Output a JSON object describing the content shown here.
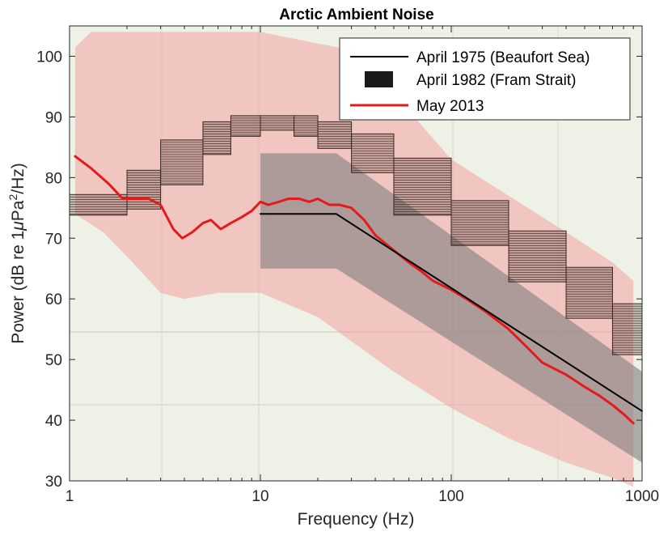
{
  "chart_data": {
    "type": "line",
    "title": "Arctic Ambient Noise",
    "xlabel": "Frequency (Hz)",
    "ylabel_parts": {
      "pre": "Power (dB re 1",
      "mu": "μ",
      "mid": "Pa",
      "sup": "2",
      "post": "/Hz)"
    },
    "xscale": "log",
    "xlim": [
      1,
      1000
    ],
    "ylim": [
      30,
      105
    ],
    "xticks": [
      1,
      10,
      100,
      1000
    ],
    "xtick_labels": [
      "1",
      "10",
      "100",
      "1000"
    ],
    "yticks": [
      30,
      40,
      50,
      60,
      70,
      80,
      90,
      100
    ],
    "ytick_labels": [
      "30",
      "40",
      "50",
      "60",
      "70",
      "80",
      "90",
      "100"
    ],
    "grid": false,
    "legend_position": "top-right",
    "background": "scanned figure of historical Arctic ambient noise spectra",
    "series": [
      {
        "name": "April 1975 (Beaufort Sea)",
        "type": "line",
        "color": "#000000",
        "x": [
          10,
          25,
          1000
        ],
        "y": [
          74,
          74,
          41.5
        ],
        "band_color": "#7f7f7f",
        "band_upper": [
          [
            10,
            84
          ],
          [
            25,
            84
          ],
          [
            1000,
            48
          ]
        ],
        "band_lower": [
          [
            10,
            65
          ],
          [
            25,
            65
          ],
          [
            1000,
            33
          ]
        ]
      },
      {
        "name": "April 1982 (Fram Strait)",
        "type": "patch",
        "color": "#222222",
        "x": [
          1,
          2,
          3,
          5,
          7,
          10,
          15,
          20,
          30,
          50,
          100,
          200,
          400,
          700,
          1000
        ],
        "y": [
          75,
          76,
          80,
          85,
          88,
          89,
          89,
          88,
          86,
          82,
          75,
          70,
          64,
          58,
          52
        ]
      },
      {
        "name": "May 2013",
        "type": "line",
        "color": "#e41a1c",
        "x": [
          1.07,
          1.3,
          1.6,
          1.9,
          2.2,
          2.6,
          3.0,
          3.5,
          3.9,
          4.4,
          5.0,
          5.5,
          6.2,
          7.0,
          8.0,
          9.0,
          10.0,
          11.0,
          12.5,
          14.0,
          16.0,
          18.0,
          20.0,
          23.0,
          26.0,
          30.0,
          35.0,
          40.0,
          50.0,
          60.0,
          70.0,
          80.0,
          100.0,
          120.0,
          150.0,
          200.0,
          250.0,
          300.0,
          400.0,
          500.0,
          600.0,
          700.0,
          800.0,
          900.0
        ],
        "y": [
          83.5,
          81.5,
          79.0,
          76.5,
          76.5,
          76.5,
          75.5,
          71.5,
          70.0,
          71.0,
          72.5,
          73.0,
          71.5,
          72.5,
          73.5,
          74.5,
          76.0,
          75.5,
          76.0,
          76.5,
          76.5,
          76.0,
          76.5,
          75.5,
          75.5,
          75.0,
          73.0,
          70.5,
          68.0,
          66.0,
          64.5,
          63.0,
          61.5,
          60.0,
          58.0,
          55.0,
          52.0,
          49.5,
          47.5,
          45.5,
          44.0,
          42.5,
          41.0,
          39.5
        ],
        "band_color": "#f4a0a0",
        "band_upper": [
          [
            1.07,
            101.5
          ],
          [
            1.3,
            104
          ],
          [
            10,
            104
          ],
          [
            30,
            101
          ],
          [
            60,
            91
          ],
          [
            100,
            83
          ],
          [
            200,
            77
          ],
          [
            400,
            71
          ],
          [
            700,
            66
          ],
          [
            900,
            63
          ]
        ],
        "band_lower": [
          [
            1.07,
            74
          ],
          [
            1.5,
            71
          ],
          [
            2.0,
            67
          ],
          [
            3.0,
            61
          ],
          [
            4.0,
            60
          ],
          [
            6.0,
            61
          ],
          [
            10,
            61
          ],
          [
            20,
            57
          ],
          [
            30,
            53
          ],
          [
            50,
            48
          ],
          [
            100,
            42
          ],
          [
            200,
            37
          ],
          [
            400,
            33
          ],
          [
            700,
            30.5
          ],
          [
            900,
            29
          ]
        ]
      }
    ]
  }
}
